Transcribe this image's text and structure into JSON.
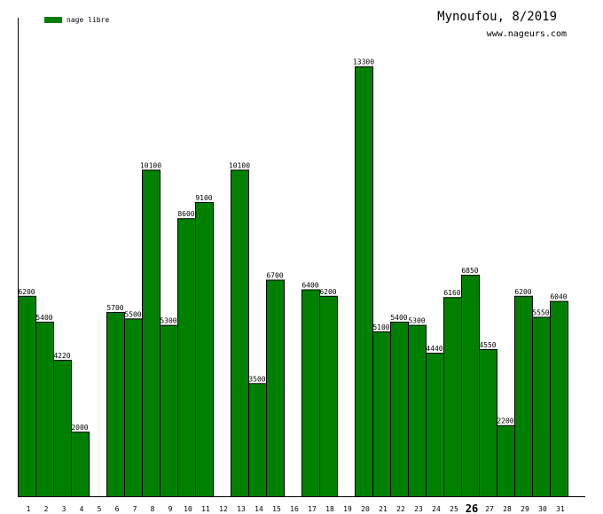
{
  "chart_data": {
    "type": "bar",
    "title": "Mynoufou, 8/2019",
    "subtitle": "www.nageurs.com",
    "xlabel": "",
    "ylabel": "",
    "ylim": [
      0,
      14800
    ],
    "grid": false,
    "legend_position": "top-left",
    "categories": [
      "1",
      "2",
      "3",
      "4",
      "5",
      "6",
      "7",
      "8",
      "9",
      "10",
      "11",
      "12",
      "13",
      "14",
      "15",
      "16",
      "17",
      "18",
      "19",
      "20",
      "21",
      "22",
      "23",
      "24",
      "25",
      "26",
      "27",
      "28",
      "29",
      "30",
      "31"
    ],
    "highlight_category": "26",
    "series": [
      {
        "name": "nage libre",
        "color": "#008000",
        "values": [
          6200,
          5400,
          4220,
          2000,
          null,
          5700,
          5500,
          10100,
          5300,
          8600,
          9100,
          null,
          10100,
          3500,
          6700,
          null,
          6400,
          6200,
          null,
          13300,
          5100,
          5400,
          5300,
          4440,
          6160,
          6850,
          4550,
          2200,
          6200,
          5550,
          6040
        ]
      }
    ]
  }
}
